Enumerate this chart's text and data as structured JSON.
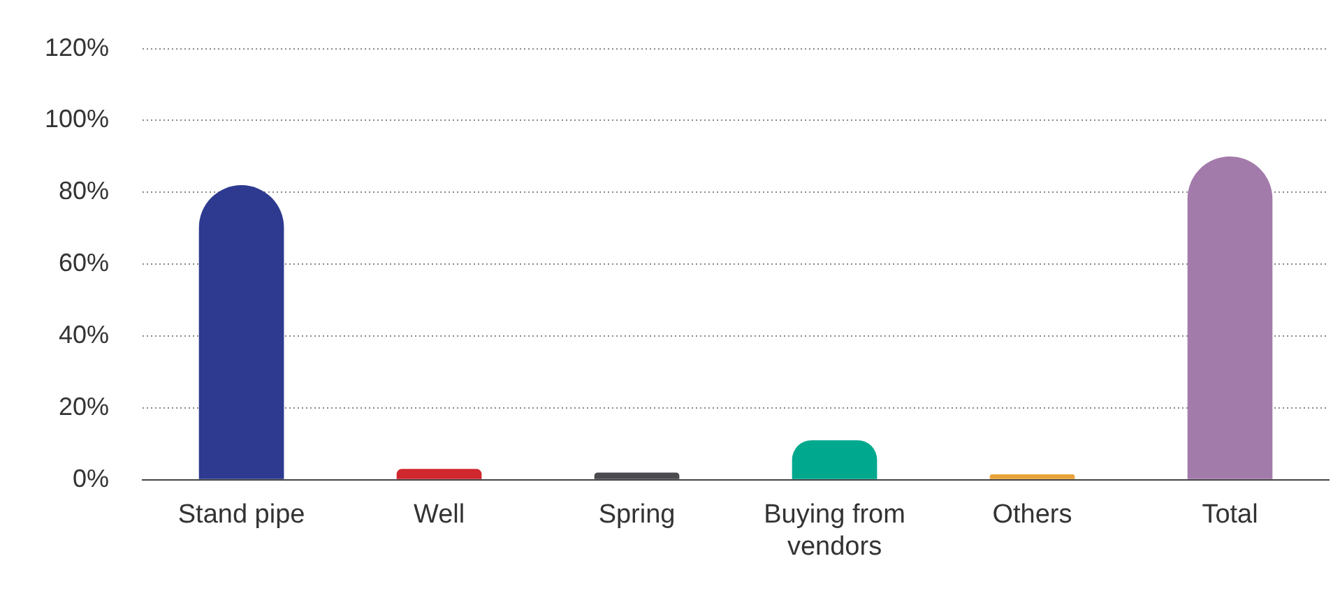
{
  "chart_data": {
    "type": "bar",
    "categories": [
      "Stand pipe",
      "Well",
      "Spring",
      "Buying from vendors",
      "Others",
      "Total"
    ],
    "values": [
      82,
      3,
      2,
      11,
      1.5,
      90
    ],
    "colors": [
      "#2e3a8f",
      "#d0282e",
      "#4a4a4f",
      "#00a88e",
      "#e8a33a",
      "#a37bab"
    ],
    "ylim": [
      0,
      120
    ],
    "yticks": [
      {
        "value": 0,
        "label": "0%"
      },
      {
        "value": 20,
        "label": "20%"
      },
      {
        "value": 40,
        "label": "40%"
      },
      {
        "value": 60,
        "label": "60%"
      },
      {
        "value": 80,
        "label": "80%"
      },
      {
        "value": 100,
        "label": "100%"
      },
      {
        "value": 120,
        "label": "120%"
      }
    ],
    "grid": "y",
    "legend": false
  }
}
